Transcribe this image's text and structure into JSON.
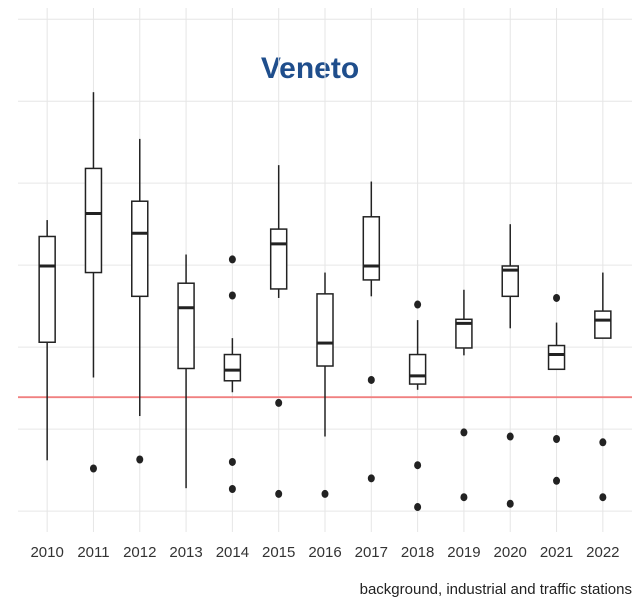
{
  "chart_data": {
    "type": "box",
    "title": "Veneto",
    "title_color": "#1f4e8c",
    "caption": "background, industrial and traffic stations",
    "categories": [
      "2010",
      "2011",
      "2012",
      "2013",
      "2014",
      "2015",
      "2016",
      "2017",
      "2018",
      "2019",
      "2020",
      "2021",
      "2022"
    ],
    "boxes": [
      {
        "whislo": 0.62,
        "q1": 2.06,
        "med": 2.99,
        "q3": 3.35,
        "whishi": 3.55,
        "fliers": []
      },
      {
        "whislo": 1.63,
        "q1": 2.91,
        "med": 3.63,
        "q3": 4.18,
        "whishi": 5.11,
        "fliers": [
          0.52
        ]
      },
      {
        "whislo": 1.16,
        "q1": 2.62,
        "med": 3.39,
        "q3": 3.78,
        "whishi": 4.54,
        "fliers": [
          0.63
        ]
      },
      {
        "whislo": 0.28,
        "q1": 1.74,
        "med": 2.48,
        "q3": 2.78,
        "whishi": 3.13,
        "fliers": []
      },
      {
        "whislo": 1.45,
        "q1": 1.59,
        "med": 1.72,
        "q3": 1.91,
        "whishi": 2.11,
        "fliers": [
          3.07,
          2.63,
          0.6,
          0.27
        ]
      },
      {
        "whislo": 2.6,
        "q1": 2.71,
        "med": 3.26,
        "q3": 3.44,
        "whishi": 4.22,
        "fliers": [
          1.32,
          0.21
        ]
      },
      {
        "whislo": 0.91,
        "q1": 1.77,
        "med": 2.05,
        "q3": 2.65,
        "whishi": 2.91,
        "fliers": [
          0.21
        ]
      },
      {
        "whislo": 2.62,
        "q1": 2.82,
        "med": 2.99,
        "q3": 3.59,
        "whishi": 4.02,
        "fliers": [
          1.6,
          0.4
        ]
      },
      {
        "whislo": 1.48,
        "q1": 1.55,
        "med": 1.65,
        "q3": 1.91,
        "whishi": 2.33,
        "fliers": [
          2.52,
          0.56,
          0.05
        ]
      },
      {
        "whislo": 1.9,
        "q1": 1.99,
        "med": 2.29,
        "q3": 2.34,
        "whishi": 2.7,
        "fliers": [
          0.96,
          0.17
        ]
      },
      {
        "whislo": 2.23,
        "q1": 2.62,
        "med": 2.94,
        "q3": 2.99,
        "whishi": 3.5,
        "fliers": [
          0.91,
          0.09
        ]
      },
      {
        "whislo": 1.73,
        "q1": 1.73,
        "med": 1.91,
        "q3": 2.02,
        "whishi": 2.3,
        "fliers": [
          2.6,
          0.88,
          0.37
        ]
      },
      {
        "whislo": 2.11,
        "q1": 2.11,
        "med": 2.33,
        "q3": 2.44,
        "whishi": 2.91,
        "fliers": [
          0.84,
          0.17
        ]
      }
    ],
    "hline": 1.39,
    "hline_color": "#f08080",
    "ylim": [
      -0.23,
      6.1
    ],
    "yticks": [
      0,
      1,
      2,
      3,
      4,
      5,
      6
    ],
    "grid": true
  }
}
